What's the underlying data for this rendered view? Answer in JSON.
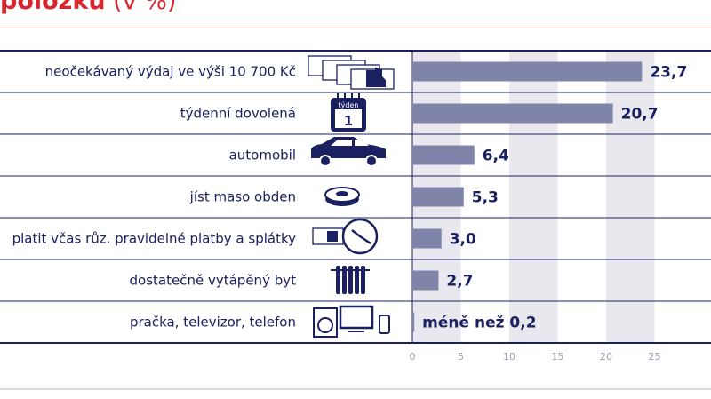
{
  "title": {
    "bold": "položku",
    "rest": " (v %)"
  },
  "colors": {
    "title": "#d8262e",
    "bar": "#7f84a8",
    "band": "#e8e8ee",
    "text": "#1a2060"
  },
  "chart_data": {
    "type": "bar",
    "orientation": "horizontal",
    "title": "položku (v %)",
    "categories": [
      "neočekávaný výdaj ve výši 10 700 Kč",
      "týdenní dovolená",
      "automobil",
      "jíst maso obden",
      "platit včas růz. pravidelné platby a splátky",
      "dostatečně vytápěný byt",
      "pračka, televizor, telefon"
    ],
    "values": [
      23.7,
      20.7,
      6.4,
      5.3,
      3.0,
      2.7,
      0.2
    ],
    "value_labels": [
      "23,7",
      "20,7",
      "6,4",
      "5,3",
      "3,0",
      "2,7",
      "méně než 0,2"
    ],
    "icons": [
      "banknotes-icon",
      "calendar-icon",
      "car-icon",
      "meat-icon",
      "banknote-clock-icon",
      "radiator-icon",
      "appliances-icon"
    ],
    "xticks": [
      0,
      5,
      10,
      15,
      20,
      25
    ],
    "xtick_labels": [
      "0",
      "5",
      "10",
      "15",
      "20",
      "25"
    ],
    "xlim": [
      0,
      25
    ],
    "shaded_bands": [
      [
        0,
        5
      ],
      [
        10,
        15
      ],
      [
        20,
        25
      ]
    ]
  },
  "icon_text": {
    "calendar_word": "týden",
    "calendar_num": "1"
  }
}
